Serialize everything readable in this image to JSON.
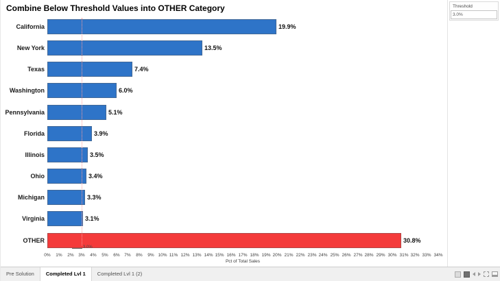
{
  "title": "Combine Below Threshold Values into OTHER Category",
  "parameter_panel": {
    "label": "Threshold",
    "value": "3.0%"
  },
  "chart_data": {
    "type": "bar",
    "orientation": "horizontal",
    "title": "Combine Below Threshold Values into OTHER Category",
    "categories": [
      "California",
      "New York",
      "Texas",
      "Washington",
      "Pennsylvania",
      "Florida",
      "Illinois",
      "Ohio",
      "Michigan",
      "Virginia",
      "OTHER"
    ],
    "values": [
      19.9,
      13.5,
      7.4,
      6.0,
      5.1,
      3.9,
      3.5,
      3.4,
      3.3,
      3.1,
      30.8
    ],
    "value_labels": [
      "19.9%",
      "13.5%",
      "7.4%",
      "6.0%",
      "5.1%",
      "3.9%",
      "3.5%",
      "3.4%",
      "3.3%",
      "3.1%",
      "30.8%"
    ],
    "xlabel": "Pct of Total Sales",
    "xlim": [
      0,
      34
    ],
    "x_tick_step": 1,
    "x_tick_suffix": "%",
    "grid": false,
    "legend": false,
    "reference_line": {
      "value": 3.0,
      "label": "3.0%"
    }
  },
  "colors": {
    "bar_default": "#2e74c8",
    "bar_other": "#f43b3b",
    "reference_line": "#ff9d9d",
    "statusbar_bg": "#f0f0f0"
  },
  "tabs": [
    {
      "label": "Pre Solution",
      "active": false
    },
    {
      "label": "Completed Lvl 1",
      "active": true
    },
    {
      "label": "Completed Lvl 1 (2)",
      "active": false
    }
  ],
  "status_icons": [
    {
      "name": "tabs-view-icon",
      "shape": "square-light"
    },
    {
      "name": "filmstrip-view-icon",
      "shape": "square-dark"
    },
    {
      "name": "previous-sheet-icon",
      "shape": "arrow-left"
    },
    {
      "name": "next-sheet-icon",
      "shape": "arrow-right"
    },
    {
      "name": "film-frames-icon",
      "shape": "square-dashed"
    },
    {
      "name": "presentation-mode-icon",
      "shape": "monitor"
    }
  ]
}
